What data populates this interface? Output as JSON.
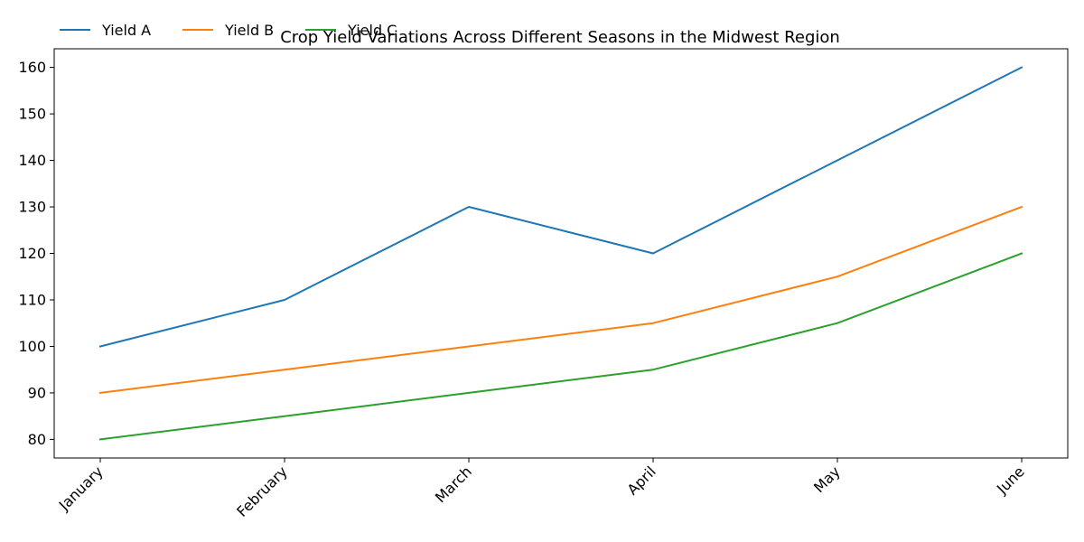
{
  "chart_data": {
    "type": "line",
    "title": "Crop Yield Variations Across Different Seasons in the Midwest Region",
    "xlabel": "",
    "ylabel": "",
    "categories": [
      "January",
      "February",
      "March",
      "April",
      "May",
      "June"
    ],
    "ylim": [
      76,
      164
    ],
    "yticks": [
      80,
      90,
      100,
      110,
      120,
      130,
      140,
      150,
      160
    ],
    "grid": false,
    "legend_position": "top-left",
    "series": [
      {
        "name": "Yield A",
        "color": "#1f77b4",
        "values": [
          100,
          110,
          130,
          120,
          140,
          160
        ]
      },
      {
        "name": "Yield B",
        "color": "#ff7f0e",
        "values": [
          90,
          95,
          100,
          105,
          115,
          130
        ]
      },
      {
        "name": "Yield C",
        "color": "#2ca02c",
        "values": [
          80,
          85,
          90,
          95,
          105,
          120
        ]
      }
    ]
  }
}
